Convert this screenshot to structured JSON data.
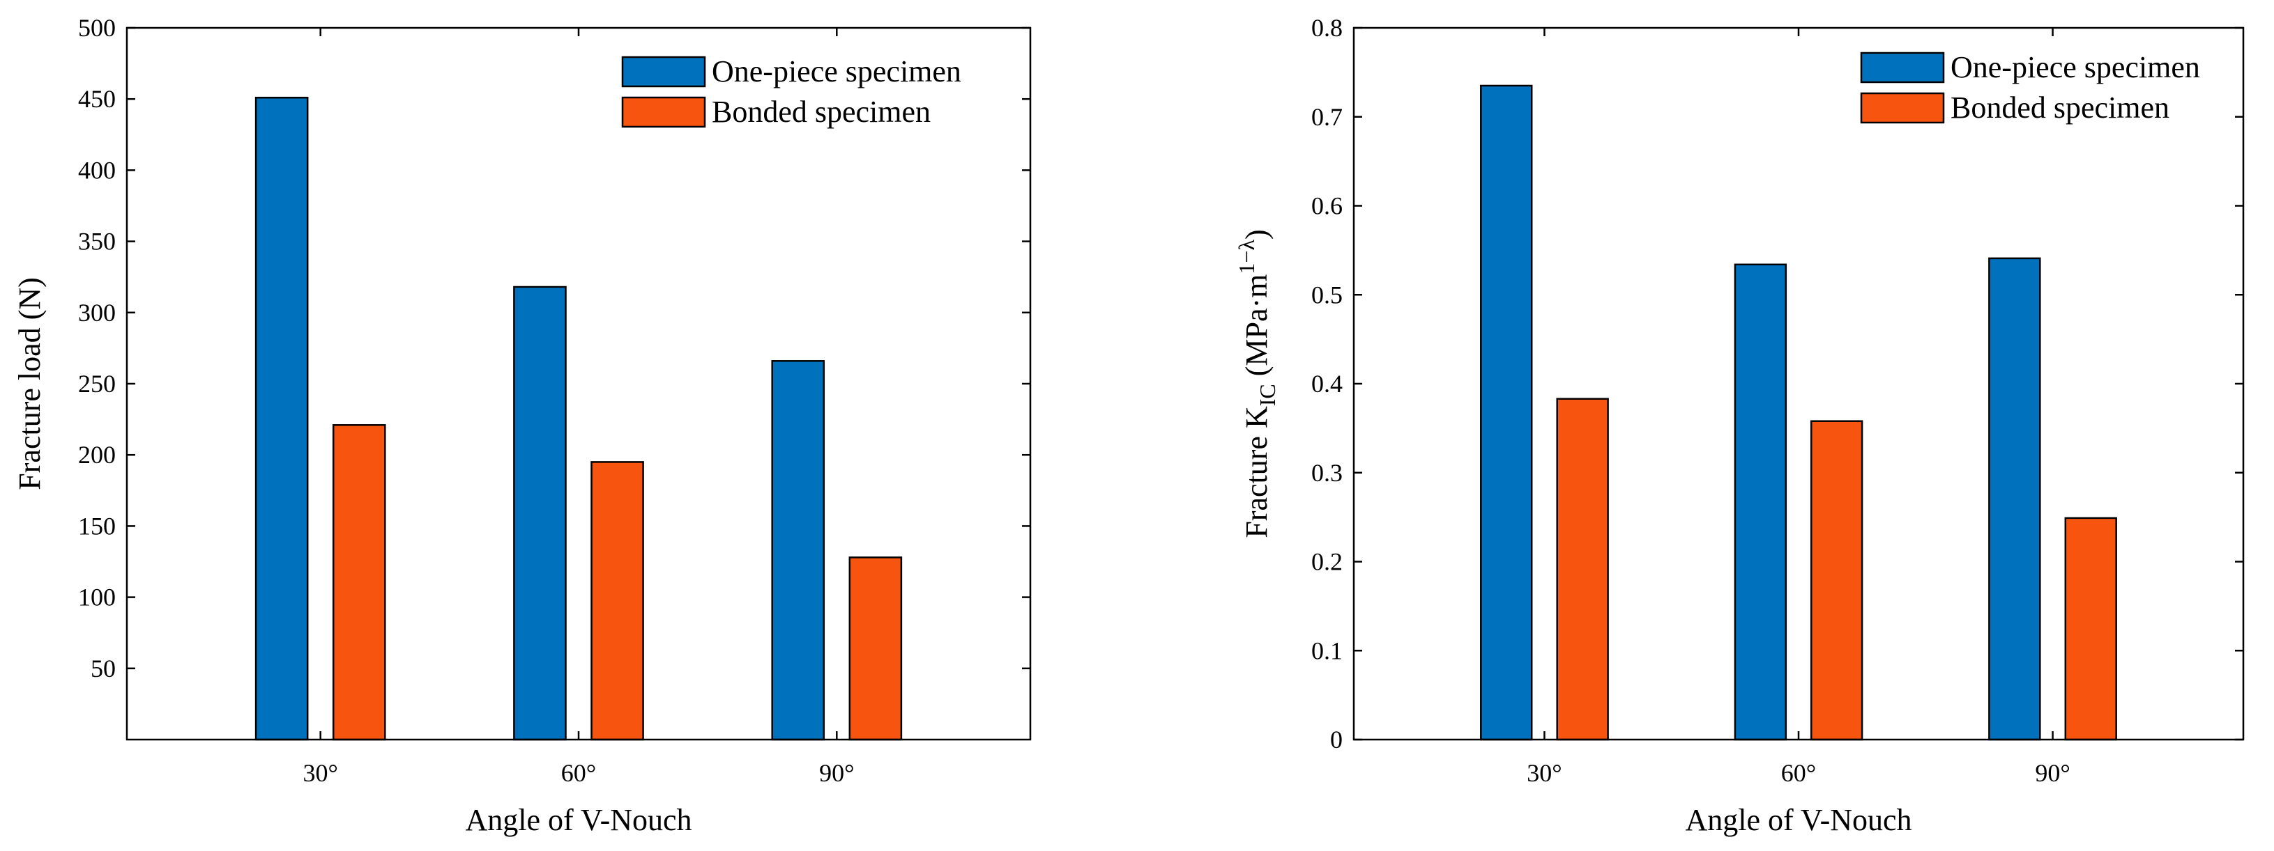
{
  "colors": {
    "one_piece": "#0072BD",
    "bonded": "#F75410",
    "axis": "#000000"
  },
  "chart_data": [
    {
      "type": "bar",
      "title": "",
      "xlabel": "Angle of V-Nouch",
      "ylabel": "Fracture load (N)",
      "categories": [
        "30°",
        "60°",
        "90°"
      ],
      "ylim": [
        0,
        500
      ],
      "yticks": [
        50,
        100,
        150,
        200,
        250,
        300,
        350,
        400,
        450,
        500
      ],
      "ytick_labels": [
        "50",
        "100",
        "150",
        "200",
        "250",
        "300",
        "350",
        "400",
        "450",
        "500"
      ],
      "legend_position": "top-right",
      "series": [
        {
          "name": "One-piece specimen",
          "values": [
            451,
            318,
            266
          ]
        },
        {
          "name": "Bonded specimen",
          "values": [
            221,
            195,
            128
          ]
        }
      ]
    },
    {
      "type": "bar",
      "title": "",
      "xlabel": "Angle of V-Nouch",
      "ylabel": "Fracture K",
      "ylabel_sub": "IC",
      "ylabel_units": " (MPa·m",
      "ylabel_sup": "1−λ",
      "ylabel_close": ")",
      "categories": [
        "30°",
        "60°",
        "90°"
      ],
      "ylim": [
        0,
        0.8
      ],
      "yticks": [
        0,
        0.1,
        0.2,
        0.3,
        0.4,
        0.5,
        0.6,
        0.7,
        0.8
      ],
      "ytick_labels": [
        "0",
        "0.1",
        "0.2",
        "0.3",
        "0.4",
        "0.5",
        "0.6",
        "0.7",
        "0.8"
      ],
      "legend_position": "top-right",
      "series": [
        {
          "name": "One-piece specimen",
          "values": [
            0.735,
            0.534,
            0.541
          ]
        },
        {
          "name": "Bonded specimen",
          "values": [
            0.383,
            0.358,
            0.249
          ]
        }
      ]
    }
  ]
}
